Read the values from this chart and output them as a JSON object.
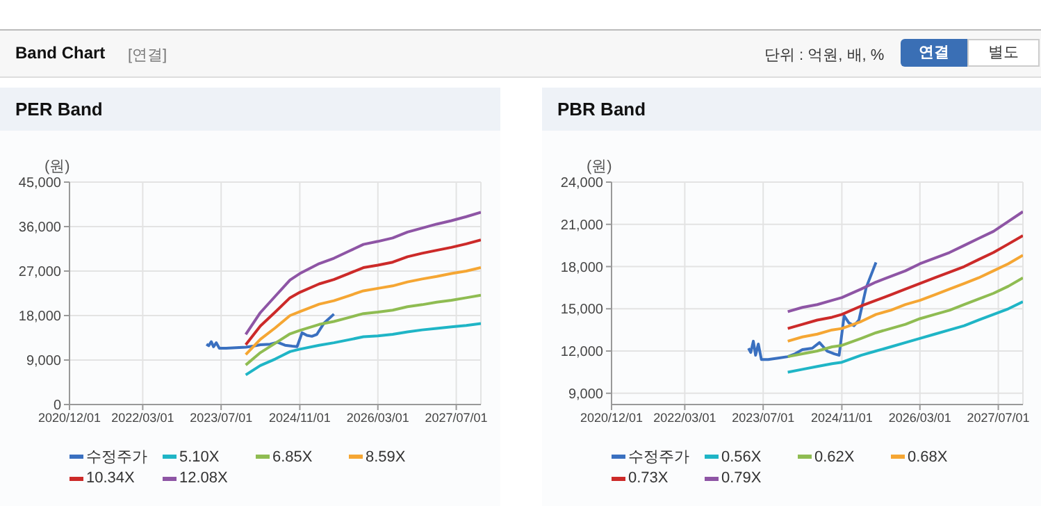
{
  "chart_data": [
    {
      "type": "line",
      "title": "PER Band",
      "ylabel": "(원)",
      "annotations": [
        "Band Chart",
        "[연결]",
        "단위 : 억원, 배, %",
        "연결",
        "별도"
      ],
      "xlim": [
        "2020-12-01",
        "2027-12-01"
      ],
      "xticks": [
        {
          "value": "2020-12-01",
          "label": "2020/12/01"
        },
        {
          "value": "2022-03-01",
          "label": "2022/03/01"
        },
        {
          "value": "2023-07-01",
          "label": "2023/07/01"
        },
        {
          "value": "2024-11-01",
          "label": "2024/11/01"
        },
        {
          "value": "2026-03-01",
          "label": "2026/03/01"
        },
        {
          "value": "2027-07-01",
          "label": "2027/07/01"
        }
      ],
      "ylim": [
        0,
        45000
      ],
      "yticks": [
        0,
        {
          "value": 9000,
          "label": "9,000"
        },
        {
          "value": 18000,
          "label": "18,000"
        },
        {
          "value": 27000,
          "label": "27,000"
        },
        {
          "value": 36000,
          "label": "36,000"
        },
        {
          "value": 45000,
          "label": "45,000"
        }
      ],
      "grid": true,
      "legend": "bottom",
      "x": [
        "2023-12-01",
        "2024-03-01",
        "2024-06-01",
        "2024-09-01",
        "2024-11-01",
        "2025-03-01",
        "2025-06-01",
        "2025-09-01",
        "2025-12-01",
        "2026-03-01",
        "2026-06-01",
        "2026-09-01",
        "2026-12-01",
        "2027-03-01",
        "2027-06-01",
        "2027-09-01",
        "2027-12-01"
      ],
      "series": [
        {
          "name": "수정주가",
          "color": "#3a70c0",
          "x": [
            "2023-04-01",
            "2023-04-15",
            "2023-05-01",
            "2023-05-15",
            "2023-06-01",
            "2023-06-20",
            "2023-08-01",
            "2023-10-01",
            "2023-12-01",
            "2024-01-15",
            "2024-03-01",
            "2024-05-01",
            "2024-06-15",
            "2024-08-01",
            "2024-09-15",
            "2024-10-15",
            "2024-11-15",
            "2024-12-15",
            "2025-01-15",
            "2025-02-15",
            "2025-04-01",
            "2025-06-01"
          ],
          "values": [
            12200,
            11900,
            12700,
            11700,
            12500,
            11400,
            11400,
            11500,
            11600,
            11800,
            12100,
            12200,
            12600,
            12000,
            11800,
            11700,
            14500,
            14000,
            13800,
            14200,
            16500,
            18300
          ]
        },
        {
          "name": "5.10X",
          "color": "#1fb5c6",
          "values": [
            6000,
            7900,
            9200,
            10700,
            11200,
            12000,
            12500,
            13100,
            13700,
            13900,
            14200,
            14700,
            15100,
            15400,
            15700,
            16000,
            16400
          ]
        },
        {
          "name": "6.85X",
          "color": "#8fbc52",
          "values": [
            8000,
            10500,
            12400,
            14300,
            15000,
            16200,
            16800,
            17600,
            18400,
            18700,
            19100,
            19800,
            20200,
            20700,
            21100,
            21600,
            22100
          ]
        },
        {
          "name": "8.59X",
          "color": "#f5a633",
          "values": [
            10100,
            13200,
            15500,
            18000,
            18800,
            20300,
            21000,
            22000,
            23000,
            23500,
            24000,
            24800,
            25400,
            25900,
            26500,
            27000,
            27700
          ]
        },
        {
          "name": "10.34X",
          "color": "#cc2a29",
          "values": [
            12100,
            15900,
            18700,
            21600,
            22700,
            24400,
            25300,
            26500,
            27700,
            28200,
            28800,
            29900,
            30600,
            31200,
            31800,
            32500,
            33300
          ]
        },
        {
          "name": "12.08X",
          "color": "#8e55a5",
          "values": [
            14200,
            18600,
            21900,
            25200,
            26500,
            28500,
            29600,
            31000,
            32400,
            33000,
            33700,
            34900,
            35700,
            36500,
            37200,
            38000,
            38900
          ]
        }
      ]
    },
    {
      "type": "line",
      "title": "PBR Band",
      "ylabel": "(원)",
      "xlim": [
        "2020-12-01",
        "2027-12-01"
      ],
      "xticks": [
        {
          "value": "2020-12-01",
          "label": "2020/12/01"
        },
        {
          "value": "2022-03-01",
          "label": "2022/03/01"
        },
        {
          "value": "2023-07-01",
          "label": "2023/07/01"
        },
        {
          "value": "2024-11-01",
          "label": "2024/11/01"
        },
        {
          "value": "2026-03-01",
          "label": "2026/03/01"
        },
        {
          "value": "2027-07-01",
          "label": "2027/07/01"
        }
      ],
      "ylim": [
        8200,
        24000
      ],
      "yticks": [
        {
          "value": 9000,
          "label": "9,000"
        },
        {
          "value": 12000,
          "label": "12,000"
        },
        {
          "value": 15000,
          "label": "15,000"
        },
        {
          "value": 18000,
          "label": "18,000"
        },
        {
          "value": 21000,
          "label": "21,000"
        },
        {
          "value": 24000,
          "label": "24,000"
        }
      ],
      "grid": true,
      "legend": "bottom",
      "x": [
        "2023-12-01",
        "2024-03-01",
        "2024-06-01",
        "2024-09-01",
        "2024-11-01",
        "2025-03-01",
        "2025-06-01",
        "2025-09-01",
        "2025-12-01",
        "2026-03-01",
        "2026-06-01",
        "2026-09-01",
        "2026-12-01",
        "2027-03-01",
        "2027-06-01",
        "2027-09-01",
        "2027-12-01"
      ],
      "series": [
        {
          "name": "수정주가",
          "color": "#3a70c0",
          "x": [
            "2023-04-01",
            "2023-04-15",
            "2023-05-01",
            "2023-05-15",
            "2023-06-01",
            "2023-06-20",
            "2023-08-01",
            "2023-10-01",
            "2023-12-01",
            "2024-01-15",
            "2024-03-01",
            "2024-05-01",
            "2024-06-15",
            "2024-08-01",
            "2024-09-15",
            "2024-10-15",
            "2024-11-15",
            "2024-12-15",
            "2025-01-15",
            "2025-02-15",
            "2025-04-01",
            "2025-06-01"
          ],
          "values": [
            12200,
            11900,
            12700,
            11700,
            12500,
            11400,
            11400,
            11500,
            11600,
            11800,
            12100,
            12200,
            12600,
            12000,
            11800,
            11700,
            14500,
            14000,
            13800,
            14200,
            16500,
            18300
          ]
        },
        {
          "name": "0.56X",
          "color": "#1fb5c6",
          "values": [
            10500,
            10700,
            10900,
            11100,
            11200,
            11700,
            12000,
            12300,
            12600,
            12900,
            13200,
            13500,
            13800,
            14200,
            14600,
            15000,
            15500
          ]
        },
        {
          "name": "0.62X",
          "color": "#8fbc52",
          "values": [
            11600,
            11800,
            12000,
            12300,
            12400,
            12900,
            13300,
            13600,
            13900,
            14300,
            14600,
            14900,
            15300,
            15700,
            16100,
            16600,
            17200
          ]
        },
        {
          "name": "0.68X",
          "color": "#f5a633",
          "values": [
            12700,
            13000,
            13200,
            13500,
            13600,
            14100,
            14600,
            14900,
            15300,
            15600,
            16000,
            16400,
            16800,
            17200,
            17700,
            18200,
            18800
          ]
        },
        {
          "name": "0.73X",
          "color": "#cc2a29",
          "values": [
            13600,
            13900,
            14200,
            14400,
            14600,
            15200,
            15600,
            16000,
            16400,
            16800,
            17200,
            17600,
            18000,
            18500,
            19000,
            19600,
            20200
          ]
        },
        {
          "name": "0.79X",
          "color": "#8e55a5",
          "values": [
            14800,
            15100,
            15300,
            15600,
            15800,
            16400,
            16900,
            17300,
            17700,
            18200,
            18600,
            19000,
            19500,
            20000,
            20500,
            21200,
            21900
          ]
        }
      ]
    }
  ]
}
